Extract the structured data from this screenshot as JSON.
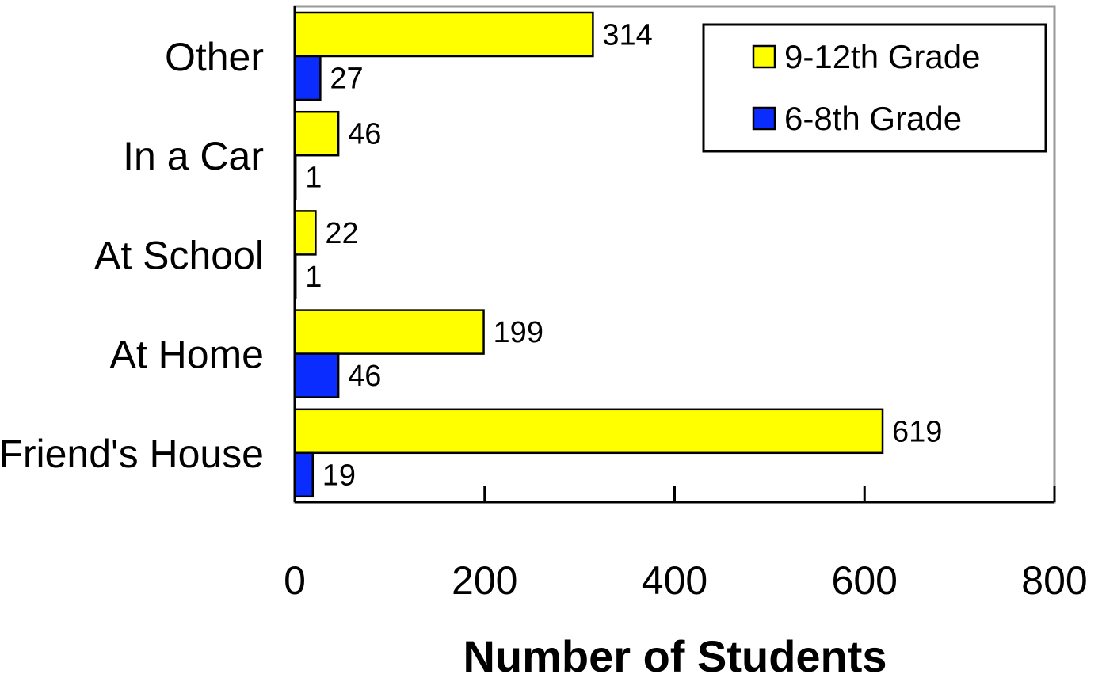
{
  "chart_data": {
    "type": "bar",
    "orientation": "horizontal",
    "categories": [
      "Other",
      "In a Car",
      "At School",
      "At Home",
      "Friend's House"
    ],
    "series": [
      {
        "name": "9-12th Grade",
        "values": [
          314,
          46,
          22,
          199,
          619
        ],
        "color": "#ffff00"
      },
      {
        "name": "6-8th Grade",
        "values": [
          27,
          1,
          1,
          46,
          19
        ],
        "color": "#0a2cff"
      }
    ],
    "xlabel": "Number of Students",
    "ylabel": "",
    "title": "",
    "xlim": [
      0,
      800
    ],
    "xticks": [
      0,
      200,
      400,
      600,
      800
    ],
    "grid": false,
    "legend_position": "top-right"
  }
}
